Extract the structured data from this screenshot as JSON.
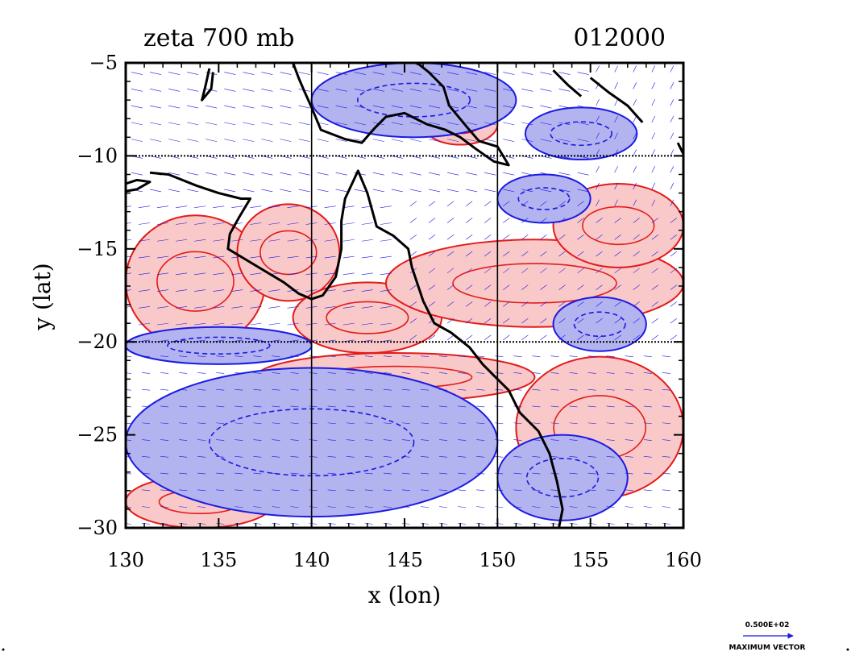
{
  "chart_data": {
    "type": "contour",
    "title": "zeta 700 mb",
    "time_label": "012000",
    "xlabel": "x (lon)",
    "ylabel": "y (lat)",
    "xlim": [
      130,
      160
    ],
    "ylim": [
      -30,
      -5
    ],
    "xticks": [
      130,
      135,
      140,
      145,
      150,
      155,
      160
    ],
    "yticks": [
      -30,
      -25,
      -20,
      -15,
      -10,
      -5
    ],
    "xtick_labels": [
      "130",
      "135",
      "140",
      "145",
      "150",
      "155",
      "160"
    ],
    "ytick_labels": [
      "−30",
      "−25",
      "−20",
      "−15",
      "−10",
      "−5"
    ],
    "grid_lon": [
      140,
      150
    ],
    "grid_lat": [
      -10,
      -20
    ],
    "colors": {
      "positive_fill": "#f9c9c9",
      "positive_line": "#e41a1a",
      "negative_fill": "#b3b3f0",
      "negative_line": "#1a1ae4",
      "coast": "#000000",
      "vector": "#1a1ae4"
    },
    "vector_legend": {
      "value_label": "0.500E+02",
      "caption": "MAXIMUM VECTOR"
    },
    "positive_regions": [
      {
        "lon": [
          130,
          137.5
        ],
        "lat": [
          -13.2,
          -20.3
        ]
      },
      {
        "lon": [
          136,
          141.5
        ],
        "lat": [
          -12.6,
          -17.8
        ]
      },
      {
        "lon": [
          139,
          147
        ],
        "lat": [
          -16.8,
          -20.6
        ]
      },
      {
        "lon": [
          144,
          160
        ],
        "lat": [
          -14.5,
          -19.2
        ]
      },
      {
        "lon": [
          137,
          152
        ],
        "lat": [
          -20.6,
          -23.2
        ]
      },
      {
        "lon": [
          151,
          160
        ],
        "lat": [
          -20.8,
          -28.4
        ]
      },
      {
        "lon": [
          130,
          138
        ],
        "lat": [
          -27.2,
          -30
        ]
      },
      {
        "lon": [
          146,
          150
        ],
        "lat": [
          -7.2,
          -9.4
        ]
      },
      {
        "lon": [
          153,
          160
        ],
        "lat": [
          -11.5,
          -16
        ]
      }
    ],
    "negative_regions": [
      {
        "lon": [
          140,
          151
        ],
        "lat": [
          -5,
          -9
        ]
      },
      {
        "lon": [
          151.5,
          157.5
        ],
        "lat": [
          -7.4,
          -10.2
        ]
      },
      {
        "lon": [
          130,
          140
        ],
        "lat": [
          -19.2,
          -21.2
        ]
      },
      {
        "lon": [
          130,
          150
        ],
        "lat": [
          -21.4,
          -29.4
        ]
      },
      {
        "lon": [
          150,
          157
        ],
        "lat": [
          -25,
          -29.6
        ]
      },
      {
        "lon": [
          150,
          155
        ],
        "lat": [
          -11,
          -13.6
        ]
      },
      {
        "lon": [
          153,
          158
        ],
        "lat": [
          -17.6,
          -20.5
        ]
      }
    ],
    "coastline": [
      [
        [
          131.3,
          -10.9
        ],
        [
          132.3,
          -11.0
        ],
        [
          133.8,
          -11.6
        ],
        [
          135.0,
          -12.0
        ],
        [
          136.2,
          -12.3
        ],
        [
          136.7,
          -12.3
        ],
        [
          136.1,
          -13.3
        ],
        [
          135.6,
          -14.2
        ],
        [
          135.5,
          -15.0
        ],
        [
          136.5,
          -15.6
        ],
        [
          137.5,
          -16.2
        ],
        [
          138.5,
          -16.8
        ],
        [
          139.3,
          -17.4
        ],
        [
          140.0,
          -17.7
        ],
        [
          140.6,
          -17.5
        ],
        [
          141.3,
          -16.5
        ],
        [
          141.6,
          -15.0
        ],
        [
          141.6,
          -13.5
        ],
        [
          141.8,
          -12.3
        ],
        [
          142.5,
          -10.8
        ],
        [
          143.0,
          -12.0
        ],
        [
          143.5,
          -13.8
        ],
        [
          144.4,
          -14.3
        ],
        [
          145.2,
          -15.0
        ],
        [
          145.4,
          -16.0
        ],
        [
          146.0,
          -17.8
        ],
        [
          146.6,
          -19.0
        ],
        [
          147.5,
          -19.5
        ],
        [
          148.5,
          -20.3
        ],
        [
          149.2,
          -21.2
        ],
        [
          150.0,
          -22.0
        ],
        [
          150.6,
          -22.6
        ],
        [
          151.2,
          -23.8
        ],
        [
          152.2,
          -24.8
        ],
        [
          152.8,
          -26.0
        ],
        [
          153.2,
          -27.5
        ],
        [
          153.5,
          -29.0
        ],
        [
          153.3,
          -30.0
        ]
      ],
      [
        [
          139.0,
          -5.0
        ],
        [
          139.3,
          -5.8
        ],
        [
          139.6,
          -6.5
        ],
        [
          140.0,
          -7.4
        ],
        [
          140.5,
          -8.6
        ],
        [
          141.8,
          -9.1
        ],
        [
          142.7,
          -9.3
        ],
        [
          143.4,
          -8.5
        ],
        [
          144.0,
          -7.9
        ],
        [
          145.0,
          -7.7
        ],
        [
          146.2,
          -8.3
        ],
        [
          147.2,
          -8.6
        ],
        [
          148.0,
          -9.0
        ],
        [
          148.8,
          -9.6
        ],
        [
          149.8,
          -10.3
        ],
        [
          150.6,
          -10.5
        ],
        [
          150.0,
          -9.5
        ],
        [
          149.0,
          -9.2
        ],
        [
          148.4,
          -8.5
        ],
        [
          147.4,
          -7.3
        ],
        [
          147.1,
          -6.3
        ],
        [
          146.3,
          -5.5
        ],
        [
          145.8,
          -5.1
        ],
        [
          145.6,
          -5.0
        ]
      ],
      [
        [
          134.5,
          -5.3
        ],
        [
          134.3,
          -6.2
        ],
        [
          134.1,
          -7.0
        ],
        [
          134.6,
          -6.4
        ],
        [
          134.7,
          -5.5
        ]
      ],
      [
        [
          130.0,
          -11.5
        ],
        [
          130.6,
          -11.3
        ],
        [
          131.3,
          -11.4
        ],
        [
          130.6,
          -11.8
        ],
        [
          130.0,
          -11.9
        ]
      ],
      [
        [
          153.0,
          -5.4
        ],
        [
          153.8,
          -6.2
        ],
        [
          154.5,
          -6.8
        ]
      ],
      [
        [
          155.0,
          -5.8
        ],
        [
          156.0,
          -6.6
        ],
        [
          157.0,
          -7.3
        ],
        [
          157.8,
          -8.2
        ]
      ],
      [
        [
          159.7,
          -9.3
        ],
        [
          160.0,
          -9.9
        ]
      ]
    ]
  }
}
